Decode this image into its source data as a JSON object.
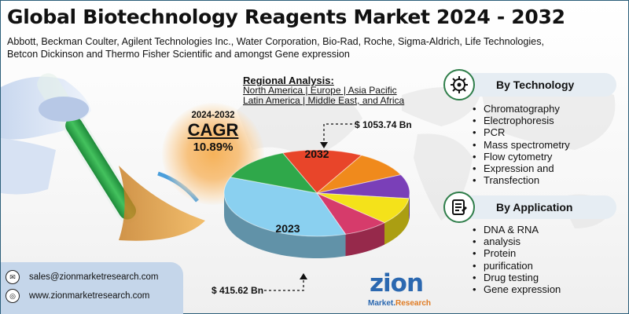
{
  "title": "Global Biotechnology Reagents Market 2024 - 2032",
  "companies": [
    "Abbott, Beckman Coulter, Agilent Technologies Inc., Water Corporation, Bio-Rad, Roche, Sigma-Aldrich, Life Technologies,",
    "Betcon Dickinson and Thermo Fisher Scientific and amongst Gene expression"
  ],
  "regional": {
    "heading": "Regional Analysis:",
    "line1": "North America | Europe | Asia Pacific",
    "line2": "Latin America | Middle East, and Africa"
  },
  "cagr": {
    "period": "2024-2032",
    "label": "CAGR",
    "value": "10.89%"
  },
  "technology": {
    "heading": "By Technology",
    "items": [
      "Chromatography",
      "Electrophoresis",
      "PCR",
      "Mass spectrometry",
      "Flow cytometry",
      "Expression and",
      "Transfection"
    ]
  },
  "application": {
    "heading": "By Application",
    "items": [
      "DNA & RNA",
      "analysis",
      "Protein",
      "purification",
      "Drug testing",
      "Gene expression"
    ]
  },
  "contact": {
    "email": "sales@zionmarketresearch.com",
    "web": "www.zionmarketresearch.com"
  },
  "logo": {
    "word": "zion",
    "sub_a": "Market.",
    "sub_b": "Research"
  },
  "colors": {
    "teal": "#2f7e4a",
    "chip": "#e6edf3",
    "contact_bg": "#c5d6ea",
    "brand_blue": "#2b68b0",
    "brand_orange": "#e07b22"
  },
  "chart_data": {
    "type": "pie",
    "title": "",
    "annotations": [
      {
        "year": "2032",
        "value": "$ 1053.74 Bn"
      },
      {
        "year": "2023",
        "value": "$ 415.62 Bn"
      }
    ],
    "segment_labels": [
      "2032",
      "2023"
    ],
    "slices": [
      {
        "color": "#e8452a",
        "value": 14
      },
      {
        "color": "#f08a1c",
        "value": 10
      },
      {
        "color": "#7a3fb8",
        "value": 9
      },
      {
        "color": "#f4e21a",
        "value": 10
      },
      {
        "color": "#d63b6b",
        "value": 8
      },
      {
        "color": "#8ad0f0",
        "value": 36
      },
      {
        "color": "#2fa84a",
        "value": 13
      }
    ]
  }
}
